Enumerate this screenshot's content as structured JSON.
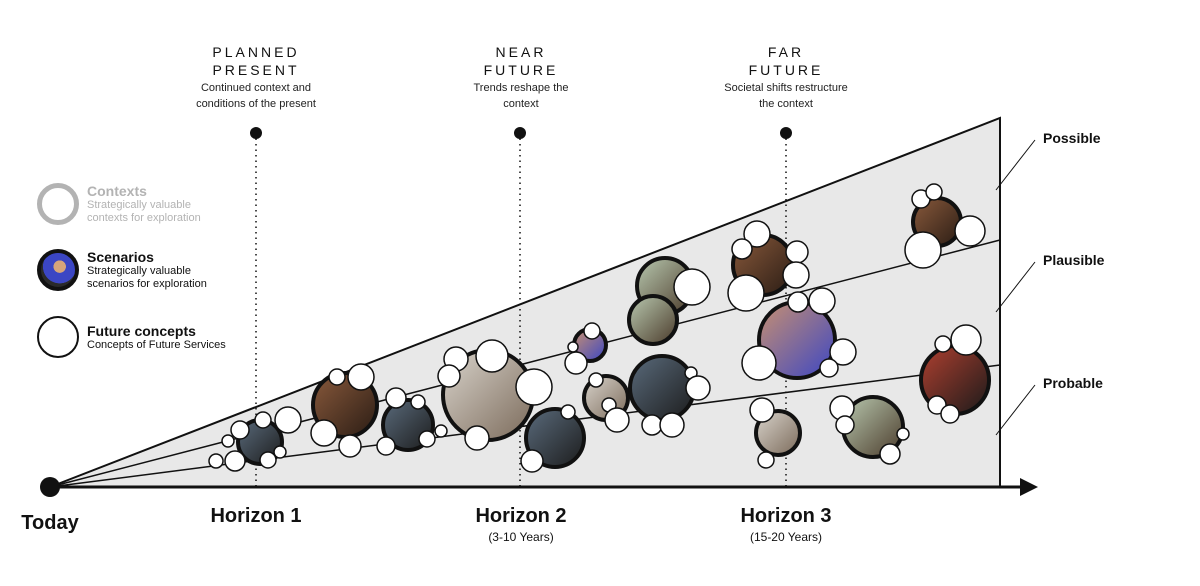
{
  "horizons_header": [
    {
      "title_line1": "PLANNED",
      "title_line2": "PRESENT",
      "desc_line1": "Continued context and",
      "desc_line2": "conditions of the present"
    },
    {
      "title_line1": "NEAR",
      "title_line2": "FUTURE",
      "desc_line1": "Trends reshape the",
      "desc_line2": "context"
    },
    {
      "title_line1": "FAR",
      "title_line2": "FUTURE",
      "desc_line1": "Societal shifts restructure",
      "desc_line2": "the context"
    }
  ],
  "legend": {
    "contexts": {
      "title": "Contexts",
      "desc_line1": "Strategically valuable",
      "desc_line2": "contexts for exploration"
    },
    "scenarios": {
      "title": "Scenarios",
      "desc_line1": "Strategically valuable",
      "desc_line2": "scenarios for exploration"
    },
    "concepts": {
      "title": "Future concepts",
      "desc_line1": "Concepts of Future Services"
    }
  },
  "bands": {
    "possible": "Possible",
    "plausible": "Plausible",
    "probable": "Probable"
  },
  "axis": {
    "today": "Today",
    "horizon1": {
      "label": "Horizon 1"
    },
    "horizon2": {
      "label": "Horizon 2",
      "range": "(3-10 Years)"
    },
    "horizon3": {
      "label": "Horizon 3",
      "range": "(15-20 Years)"
    }
  },
  "colors": {
    "cone_fill": "#e8e8e8",
    "stroke": "#111111",
    "context_gray": "#b3b3b3"
  }
}
